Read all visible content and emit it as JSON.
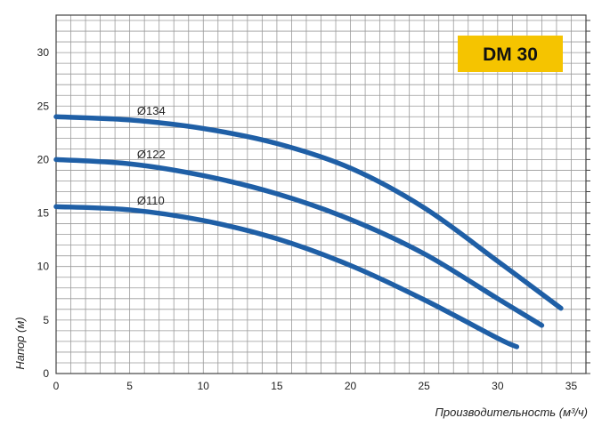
{
  "chart_data": {
    "type": "line",
    "title": "DM 30",
    "xlabel": "Производительность (м³/ч)",
    "ylabel": "Напор (м)",
    "xlim": [
      0,
      36
    ],
    "ylim": [
      0,
      33.5
    ],
    "x_ticks": [
      "0",
      "5",
      "10",
      "15",
      "20",
      "25",
      "30",
      "35"
    ],
    "y_ticks": [
      "0",
      "5",
      "10",
      "15",
      "20",
      "25",
      "30"
    ],
    "grid": true,
    "colors": {
      "series": "#1f5fa6",
      "badge": "#f5c400",
      "grid": "#9a9a9a"
    },
    "series": [
      {
        "name": "Ø134",
        "x": [
          0,
          5,
          10,
          15,
          20,
          25,
          30,
          34.3
        ],
        "y": [
          24.0,
          23.7,
          22.9,
          21.5,
          19.2,
          15.5,
          10.5,
          6.1
        ]
      },
      {
        "name": "Ø122",
        "x": [
          0,
          5,
          10,
          15,
          20,
          25,
          30,
          33.0
        ],
        "y": [
          20.0,
          19.6,
          18.5,
          16.8,
          14.4,
          11.2,
          7.0,
          4.5
        ]
      },
      {
        "name": "Ø110",
        "x": [
          0,
          5,
          10,
          15,
          20,
          25,
          30,
          31.3
        ],
        "y": [
          15.6,
          15.3,
          14.3,
          12.6,
          10.1,
          6.9,
          3.3,
          2.5
        ]
      }
    ]
  }
}
